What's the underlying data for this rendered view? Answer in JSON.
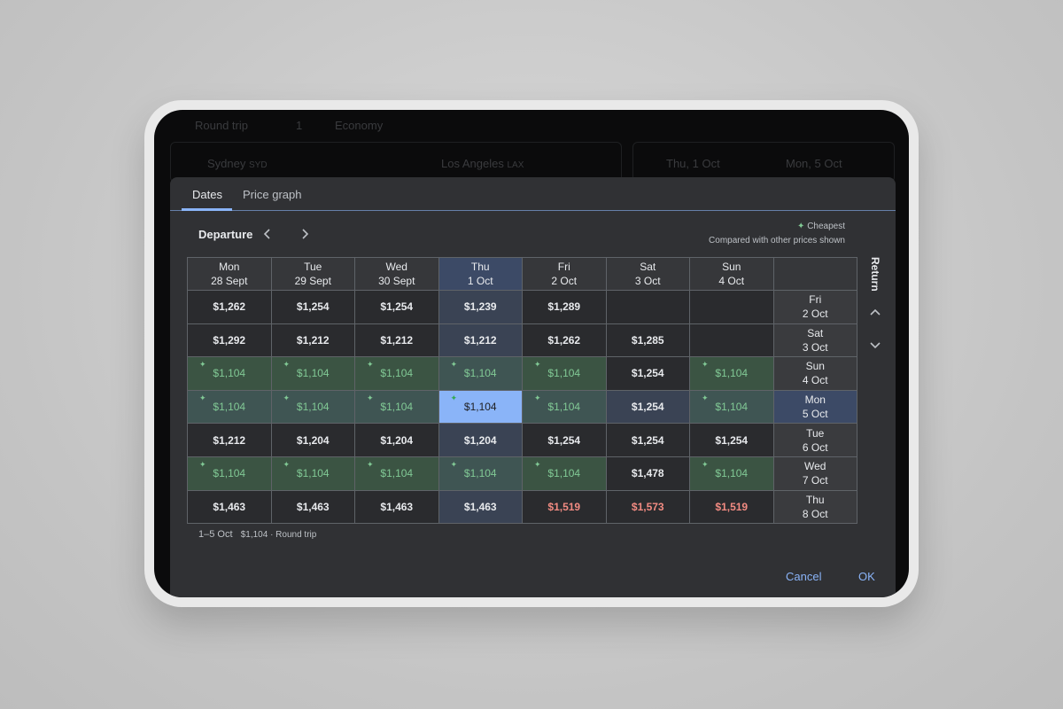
{
  "topbar": {
    "trip_type": "Round trip",
    "passengers": "1",
    "cabin": "Economy"
  },
  "search": {
    "origin": "Sydney",
    "origin_code": "SYD",
    "destination": "Los Angeles",
    "destination_code": "LAX",
    "depart": "Thu, 1 Oct",
    "return": "Mon, 5 Oct"
  },
  "tabs": [
    "Dates",
    "Price graph"
  ],
  "departure_label": "Departure",
  "legend": {
    "label": "Cheapest",
    "note": "Compared with other prices shown"
  },
  "return_label": "Return",
  "columns": [
    {
      "day": "Mon",
      "date": "28 Sept"
    },
    {
      "day": "Tue",
      "date": "29 Sept"
    },
    {
      "day": "Wed",
      "date": "30 Sept"
    },
    {
      "day": "Thu",
      "date": "1 Oct",
      "selected": true
    },
    {
      "day": "Fri",
      "date": "2 Oct"
    },
    {
      "day": "Sat",
      "date": "3 Oct"
    },
    {
      "day": "Sun",
      "date": "4 Oct"
    }
  ],
  "rows": [
    {
      "day": "Fri",
      "date": "2 Oct",
      "cells": [
        {
          "price": "$1,262",
          "kind": "normal"
        },
        {
          "price": "$1,254",
          "kind": "normal"
        },
        {
          "price": "$1,254",
          "kind": "normal"
        },
        {
          "price": "$1,239",
          "kind": "normal"
        },
        {
          "price": "$1,289",
          "kind": "normal"
        },
        null,
        null
      ]
    },
    {
      "day": "Sat",
      "date": "3 Oct",
      "cells": [
        {
          "price": "$1,292",
          "kind": "normal"
        },
        {
          "price": "$1,212",
          "kind": "normal"
        },
        {
          "price": "$1,212",
          "kind": "normal"
        },
        {
          "price": "$1,212",
          "kind": "normal"
        },
        {
          "price": "$1,262",
          "kind": "normal"
        },
        {
          "price": "$1,285",
          "kind": "normal"
        },
        null
      ]
    },
    {
      "day": "Sun",
      "date": "4 Oct",
      "cells": [
        {
          "price": "$1,104",
          "kind": "cheap"
        },
        {
          "price": "$1,104",
          "kind": "cheap"
        },
        {
          "price": "$1,104",
          "kind": "cheap"
        },
        {
          "price": "$1,104",
          "kind": "cheap"
        },
        {
          "price": "$1,104",
          "kind": "cheap"
        },
        {
          "price": "$1,254",
          "kind": "normal"
        },
        {
          "price": "$1,104",
          "kind": "cheap"
        }
      ]
    },
    {
      "day": "Mon",
      "date": "5 Oct",
      "selected": true,
      "cells": [
        {
          "price": "$1,104",
          "kind": "cheap"
        },
        {
          "price": "$1,104",
          "kind": "cheap"
        },
        {
          "price": "$1,104",
          "kind": "cheap"
        },
        {
          "price": "$1,104",
          "kind": "selected"
        },
        {
          "price": "$1,104",
          "kind": "cheap"
        },
        {
          "price": "$1,254",
          "kind": "normal"
        },
        {
          "price": "$1,104",
          "kind": "cheap"
        }
      ]
    },
    {
      "day": "Tue",
      "date": "6 Oct",
      "cells": [
        {
          "price": "$1,212",
          "kind": "normal"
        },
        {
          "price": "$1,204",
          "kind": "normal"
        },
        {
          "price": "$1,204",
          "kind": "normal"
        },
        {
          "price": "$1,204",
          "kind": "normal"
        },
        {
          "price": "$1,254",
          "kind": "normal"
        },
        {
          "price": "$1,254",
          "kind": "normal"
        },
        {
          "price": "$1,254",
          "kind": "normal"
        }
      ]
    },
    {
      "day": "Wed",
      "date": "7 Oct",
      "cells": [
        {
          "price": "$1,104",
          "kind": "cheap"
        },
        {
          "price": "$1,104",
          "kind": "cheap"
        },
        {
          "price": "$1,104",
          "kind": "cheap"
        },
        {
          "price": "$1,104",
          "kind": "cheap"
        },
        {
          "price": "$1,104",
          "kind": "cheap"
        },
        {
          "price": "$1,478",
          "kind": "normal"
        },
        {
          "price": "$1,104",
          "kind": "cheap"
        }
      ]
    },
    {
      "day": "Thu",
      "date": "8 Oct",
      "cells": [
        {
          "price": "$1,463",
          "kind": "normal"
        },
        {
          "price": "$1,463",
          "kind": "normal"
        },
        {
          "price": "$1,463",
          "kind": "normal"
        },
        {
          "price": "$1,463",
          "kind": "normal"
        },
        {
          "price": "$1,519",
          "kind": "high"
        },
        {
          "price": "$1,573",
          "kind": "high"
        },
        {
          "price": "$1,519",
          "kind": "high"
        }
      ]
    }
  ],
  "footer": {
    "dates": "1–5 Oct",
    "summary": "$1,104 · Round trip"
  },
  "buttons": {
    "cancel": "Cancel",
    "ok": "OK"
  }
}
